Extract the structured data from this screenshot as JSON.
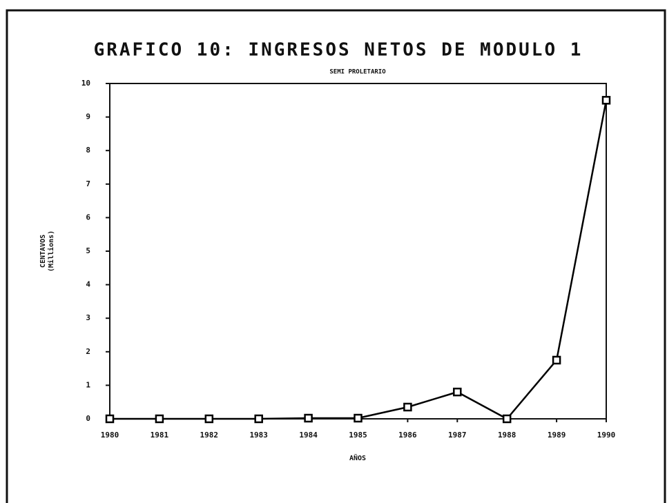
{
  "chart_data": {
    "type": "line",
    "title": "GRAFICO 10: INGRESOS NETOS DE MODULO 1",
    "subtitle": "SEMI PROLETARIO",
    "ylabel": "CENTAVOS",
    "ylabel_unit": "(Millions)",
    "xlabel": "AÑOS",
    "categories": [
      "1980",
      "1981",
      "1982",
      "1983",
      "1984",
      "1985",
      "1986",
      "1987",
      "1988",
      "1989",
      "1990"
    ],
    "series": [
      {
        "color": "#000000",
        "values": [
          0,
          0,
          0,
          0,
          0.02,
          0.02,
          0.35,
          0.8,
          0,
          1.75,
          9.5
        ]
      }
    ],
    "ylim": [
      0,
      10
    ],
    "yticks": [
      0,
      1,
      2,
      3,
      4,
      5,
      6,
      7,
      8,
      9,
      10
    ],
    "marker": "square"
  }
}
